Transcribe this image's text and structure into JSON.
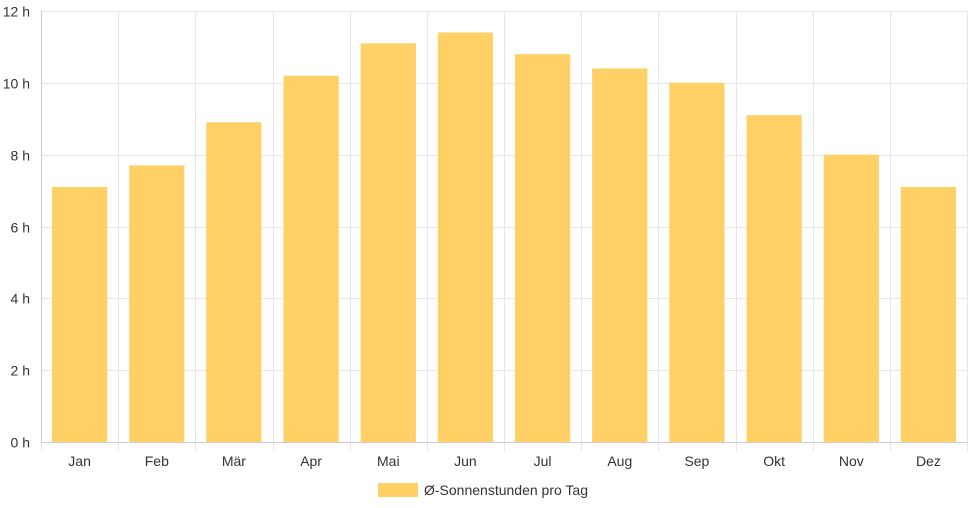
{
  "chart_data": {
    "type": "bar",
    "categories": [
      "Jan",
      "Feb",
      "Mär",
      "Apr",
      "Mai",
      "Jun",
      "Jul",
      "Aug",
      "Sep",
      "Okt",
      "Nov",
      "Dez"
    ],
    "series": [
      {
        "name": "Ø-Sonnenstunden pro Tag",
        "values": [
          7.1,
          7.7,
          8.9,
          10.2,
          11.1,
          11.4,
          10.8,
          10.4,
          10.0,
          9.1,
          8.0,
          7.1
        ],
        "color": "#fed066"
      }
    ],
    "y_ticks": [
      "0 h",
      "2 h",
      "4 h",
      "6 h",
      "8 h",
      "10 h",
      "12 h"
    ],
    "ylim": [
      0,
      12
    ],
    "grid": true,
    "legend_position": "bottom",
    "colors": {
      "grid": "#e6e6e6",
      "axis": "#cccccc",
      "text": "#333333"
    }
  }
}
